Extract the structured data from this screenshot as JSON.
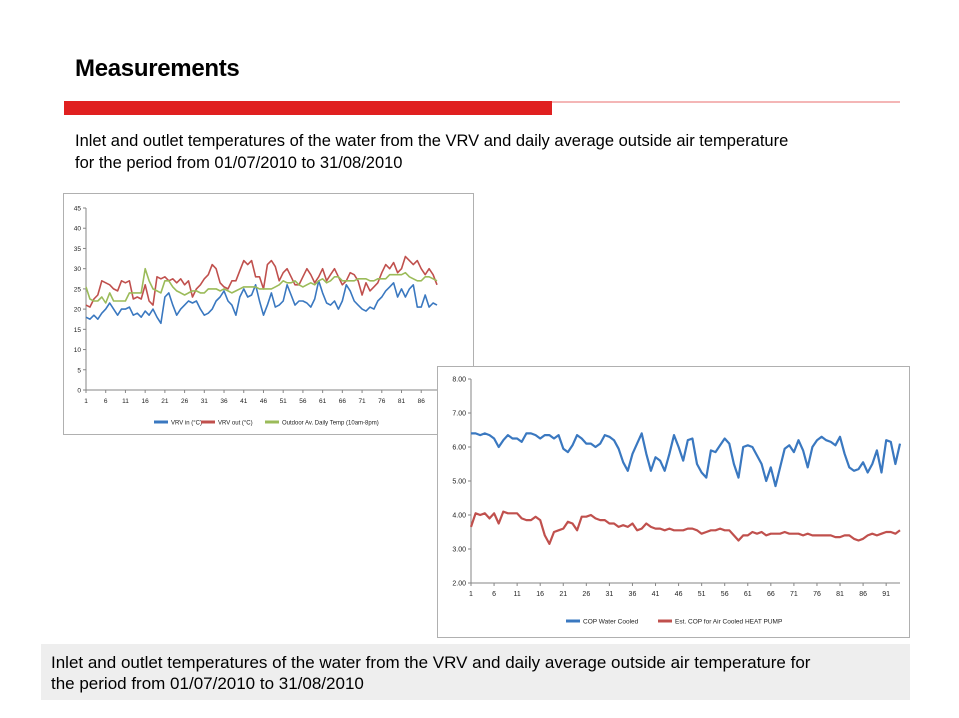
{
  "page": {
    "title": "Measurements",
    "subtitle_line1": "Inlet and outlet temperatures of the water from the VRV and daily average outside air temperature",
    "subtitle_line2": "for the period from 01/07/2010 to 31/08/2010",
    "caption_line1": "Inlet and outlet temperatures of the water from the VRV and daily average outside air temperature for",
    "caption_line2": "the period from 01/07/2010 to 31/08/2010",
    "accent_color": "#e02020",
    "accent_light": "#f4b6b6"
  },
  "chart_data": [
    {
      "type": "line",
      "title": "",
      "xlabel": "",
      "ylabel": "",
      "ylim": [
        0,
        45
      ],
      "yticks": [
        0,
        5,
        10,
        15,
        20,
        25,
        30,
        35,
        40,
        45
      ],
      "xtick_labels": [
        "1",
        "6",
        "11",
        "16",
        "21",
        "26",
        "31",
        "36",
        "41",
        "46",
        "51",
        "56",
        "61",
        "66",
        "71",
        "76",
        "81",
        "86"
      ],
      "grid": false,
      "legend_position": "bottom",
      "x": [
        1,
        2,
        3,
        4,
        5,
        6,
        7,
        8,
        9,
        10,
        11,
        12,
        13,
        14,
        15,
        16,
        17,
        18,
        19,
        20,
        21,
        22,
        23,
        24,
        25,
        26,
        27,
        28,
        29,
        30,
        31,
        32,
        33,
        34,
        35,
        36,
        37,
        38,
        39,
        40,
        41,
        42,
        43,
        44,
        45,
        46,
        47,
        48,
        49,
        50,
        51,
        52,
        53,
        54,
        55,
        56,
        57,
        58,
        59,
        60,
        61,
        62,
        63,
        64,
        65,
        66,
        67,
        68,
        69,
        70,
        71,
        72,
        73,
        74,
        75,
        76,
        77,
        78,
        79,
        80,
        81,
        82,
        83,
        84,
        85,
        86,
        87,
        88,
        89,
        90
      ],
      "series": [
        {
          "name": "VRV in (°C)",
          "color": "#3a78c0",
          "values": [
            18,
            17.5,
            18.5,
            17.5,
            19,
            20,
            21.5,
            20,
            18.5,
            20,
            20,
            20.5,
            18.5,
            19,
            18,
            19.5,
            18.5,
            20,
            18,
            16.5,
            23,
            24,
            21,
            18.5,
            20,
            21,
            22,
            21.5,
            22,
            20,
            18.5,
            19,
            20,
            22,
            23,
            24.5,
            22,
            21,
            18.5,
            23,
            25,
            23,
            23.5,
            26,
            22,
            18.5,
            21,
            24,
            20.5,
            21,
            22,
            26,
            23.5,
            21,
            22,
            22,
            21.5,
            20.5,
            22.5,
            27,
            24,
            21.5,
            21,
            22,
            20,
            22,
            26,
            24.5,
            22,
            21,
            20,
            19.5,
            20.5,
            20,
            22,
            23,
            24.5,
            25.5,
            26.5,
            23,
            25,
            23,
            25,
            26,
            20.5,
            20.5,
            23.5,
            20.5,
            21.5,
            21
          ]
        },
        {
          "name": "VRV out (°C)",
          "color": "#c0504d",
          "values": [
            21,
            20.5,
            22.5,
            23.5,
            27,
            26.5,
            26,
            25,
            24.5,
            27,
            26.5,
            27,
            22.5,
            23,
            22.5,
            26,
            22,
            21,
            28,
            27.5,
            28,
            27,
            27.5,
            26.5,
            27.5,
            26,
            27,
            23,
            25,
            26,
            27.5,
            28.5,
            31,
            30,
            26.5,
            25.5,
            25,
            27,
            27,
            29.5,
            32,
            31,
            32,
            28,
            28,
            25,
            31,
            32,
            30.5,
            27,
            29,
            30,
            28,
            26,
            26,
            28,
            30,
            28.5,
            26.5,
            28,
            30,
            27,
            28.5,
            30,
            28,
            26,
            27,
            29,
            28.5,
            27,
            23.5,
            26.5,
            24.5,
            25.5,
            26.5,
            29,
            31,
            30,
            31.5,
            29,
            30,
            33,
            32,
            31,
            32,
            30,
            28.5,
            30,
            28.5,
            26
          ]
        },
        {
          "name": "Outdoor Av. Daily Temp (10am-8pm)",
          "color": "#9bbb59",
          "values": [
            25.5,
            22.5,
            22,
            22,
            23,
            21.5,
            24,
            22,
            22,
            22,
            22,
            24,
            24,
            24,
            24,
            30,
            27,
            25,
            24.5,
            24,
            27,
            27,
            25.5,
            24.5,
            24,
            23.5,
            24,
            24.5,
            24.5,
            24,
            24,
            25,
            25,
            25,
            24.5,
            25,
            24.5,
            24,
            24.5,
            25,
            25.5,
            25.5,
            25.5,
            25.5,
            25,
            25,
            25,
            25,
            25.5,
            26,
            27,
            26.5,
            26.5,
            27,
            26,
            25.5,
            26,
            26.5,
            26,
            27,
            27.5,
            26.5,
            27,
            28,
            28,
            27,
            27,
            27,
            27,
            27.5,
            27.5,
            27.5,
            27,
            27,
            27.5,
            27.5,
            27.5,
            28.5,
            28.5,
            28.5,
            28.5,
            29,
            28,
            27.5,
            27,
            27,
            28,
            28,
            27.5,
            27
          ]
        }
      ]
    },
    {
      "type": "line",
      "title": "",
      "xlabel": "",
      "ylabel": "",
      "ylim": [
        2.0,
        8.0
      ],
      "ytick_labels": [
        "2.00",
        "3.00",
        "4.00",
        "5.00",
        "6.00",
        "7.00",
        "8.00"
      ],
      "xtick_labels": [
        "1",
        "6",
        "11",
        "16",
        "21",
        "26",
        "31",
        "36",
        "41",
        "46",
        "51",
        "56",
        "61",
        "66",
        "71",
        "76",
        "81",
        "86",
        "91"
      ],
      "grid": false,
      "legend_position": "bottom",
      "x": [
        1,
        2,
        3,
        4,
        5,
        6,
        7,
        8,
        9,
        10,
        11,
        12,
        13,
        14,
        15,
        16,
        17,
        18,
        19,
        20,
        21,
        22,
        23,
        24,
        25,
        26,
        27,
        28,
        29,
        30,
        31,
        32,
        33,
        34,
        35,
        36,
        37,
        38,
        39,
        40,
        41,
        42,
        43,
        44,
        45,
        46,
        47,
        48,
        49,
        50,
        51,
        52,
        53,
        54,
        55,
        56,
        57,
        58,
        59,
        60,
        61,
        62,
        63,
        64,
        65,
        66,
        67,
        68,
        69,
        70,
        71,
        72,
        73,
        74,
        75,
        76,
        77,
        78,
        79,
        80,
        81,
        82,
        83,
        84,
        85,
        86,
        87,
        88,
        89,
        90,
        91,
        92,
        93,
        94
      ],
      "series": [
        {
          "name": "COP Water Cooled",
          "color": "#3a78c0",
          "values": [
            6.4,
            6.4,
            6.35,
            6.4,
            6.35,
            6.25,
            6.0,
            6.2,
            6.35,
            6.25,
            6.25,
            6.15,
            6.4,
            6.4,
            6.35,
            6.25,
            6.35,
            6.35,
            6.25,
            6.35,
            5.95,
            5.85,
            6.05,
            6.35,
            6.25,
            6.1,
            6.1,
            6.0,
            6.1,
            6.35,
            6.3,
            6.2,
            5.95,
            5.55,
            5.3,
            5.8,
            6.1,
            6.4,
            5.8,
            5.3,
            5.7,
            5.6,
            5.3,
            5.8,
            6.35,
            6.0,
            5.6,
            6.2,
            6.25,
            5.5,
            5.25,
            5.1,
            5.9,
            5.85,
            6.05,
            6.25,
            6.1,
            5.5,
            5.1,
            6.0,
            6.05,
            6.0,
            5.75,
            5.5,
            5.0,
            5.4,
            4.85,
            5.4,
            5.95,
            6.05,
            5.85,
            6.2,
            5.9,
            5.4,
            6.0,
            6.2,
            6.3,
            6.2,
            6.15,
            6.05,
            6.3,
            5.8,
            5.4,
            5.3,
            5.35,
            5.55,
            5.25,
            5.5,
            5.9,
            5.25,
            6.2,
            6.15,
            5.5,
            6.1
          ]
        },
        {
          "name": "Est. COP for Air Cooled HEAT PUMP",
          "color": "#c0504d",
          "values": [
            3.65,
            4.05,
            4.0,
            4.05,
            3.9,
            4.05,
            3.75,
            4.1,
            4.05,
            4.05,
            4.05,
            3.9,
            3.85,
            3.85,
            3.95,
            3.85,
            3.4,
            3.15,
            3.5,
            3.55,
            3.6,
            3.8,
            3.75,
            3.55,
            3.95,
            3.95,
            4.0,
            3.9,
            3.85,
            3.85,
            3.75,
            3.75,
            3.65,
            3.7,
            3.65,
            3.75,
            3.55,
            3.6,
            3.75,
            3.65,
            3.6,
            3.6,
            3.55,
            3.6,
            3.55,
            3.55,
            3.55,
            3.6,
            3.6,
            3.55,
            3.45,
            3.5,
            3.55,
            3.55,
            3.6,
            3.55,
            3.55,
            3.4,
            3.25,
            3.4,
            3.4,
            3.5,
            3.45,
            3.5,
            3.4,
            3.45,
            3.45,
            3.45,
            3.5,
            3.45,
            3.45,
            3.45,
            3.4,
            3.45,
            3.4,
            3.4,
            3.4,
            3.4,
            3.4,
            3.35,
            3.35,
            3.4,
            3.4,
            3.3,
            3.25,
            3.3,
            3.4,
            3.45,
            3.4,
            3.45,
            3.5,
            3.5,
            3.45,
            3.55
          ]
        }
      ]
    }
  ]
}
